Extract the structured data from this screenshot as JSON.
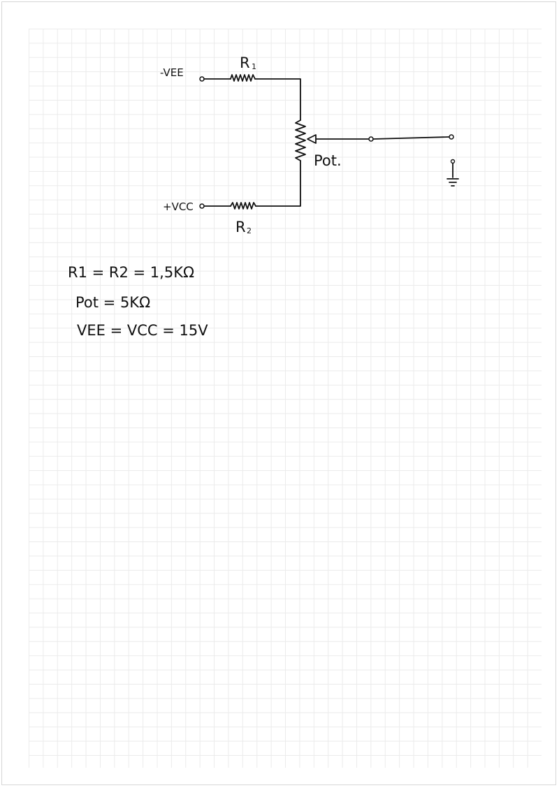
{
  "circuit": {
    "vee_label": "-VEE",
    "vcc_label": "+VCC",
    "r1_label": "R",
    "r1_sub": "1",
    "r2_label": "R",
    "r2_sub": "2",
    "pot_label": "Pot."
  },
  "notes": {
    "line1": "R1 = R2 = 1,5KΩ",
    "line2": "Pot = 5KΩ",
    "line3": "VEE = VCC = 15V"
  }
}
